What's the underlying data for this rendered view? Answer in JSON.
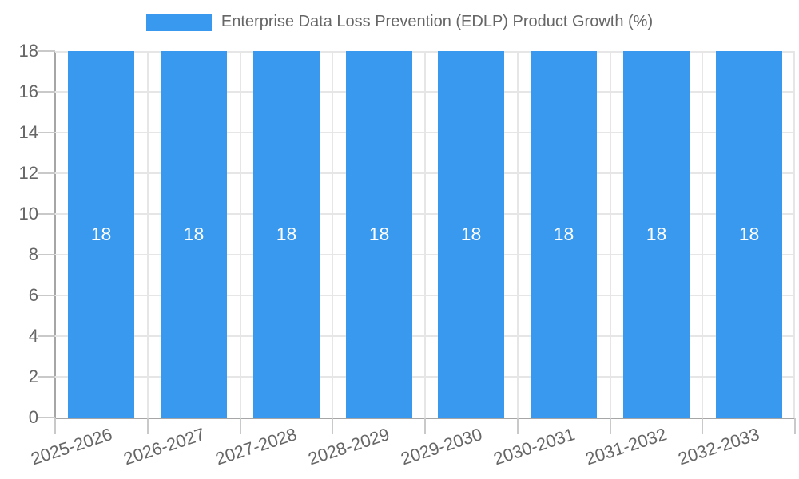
{
  "colors": {
    "bar": "#3899ee",
    "bar_label": "#ffffff",
    "legend_text": "#666666",
    "axis_label": "#666666",
    "grid_line": "#e6e6e6",
    "axis_line": "#a6a6a6",
    "tick_mark": "#c9c9c9",
    "background": "#ffffff"
  },
  "legend": {
    "position": "top",
    "swatch_color": "#3899ee"
  },
  "chart_data": {
    "type": "bar",
    "title": "Enterprise Data Loss Prevention (EDLP) Product Growth (%)",
    "categories": [
      "2025-2026",
      "2026-2027",
      "2027-2028",
      "2028-2029",
      "2029-2030",
      "2030-2031",
      "2031-2032",
      "2032-2033"
    ],
    "values": [
      18,
      18,
      18,
      18,
      18,
      18,
      18,
      18
    ],
    "bar_value_labels": [
      "18",
      "18",
      "18",
      "18",
      "18",
      "18",
      "18",
      "18"
    ],
    "xlabel": "",
    "ylabel": "",
    "ylim": [
      0,
      18
    ],
    "yticks": [
      0,
      2,
      4,
      6,
      8,
      10,
      12,
      14,
      16,
      18
    ],
    "grid": true,
    "legend_position": "top",
    "x_label_rotation_deg": -18
  }
}
